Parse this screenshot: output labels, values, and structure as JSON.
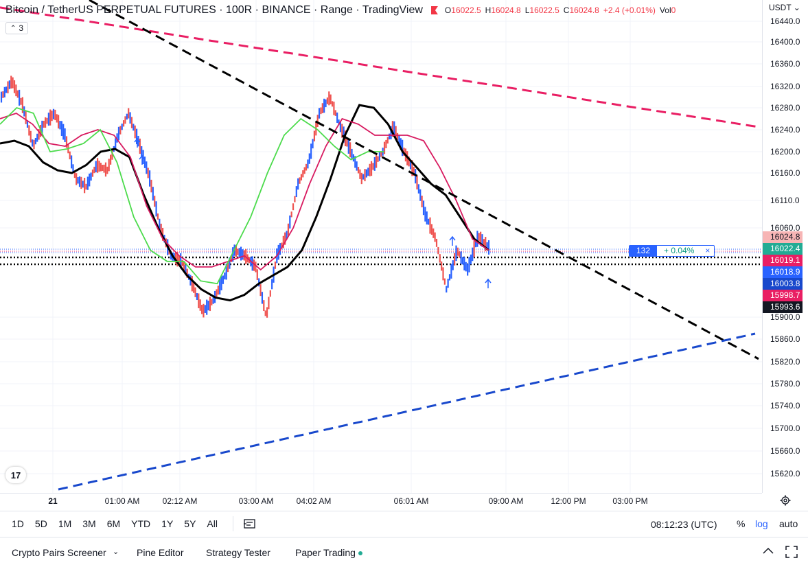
{
  "header": {
    "symbol": "Bitcoin / TetherUS PERPETUAL FUTURES · 100R · BINANCE · Range · TradingView",
    "ohlc": [
      {
        "k": "O",
        "v": "16022.5"
      },
      {
        "k": "H",
        "v": "16024.8"
      },
      {
        "k": "L",
        "v": "16022.5"
      },
      {
        "k": "C",
        "v": "16024.8"
      }
    ],
    "change": "+2.4 (+0.01%)",
    "vol_label": "Vol",
    "vol_value": "0",
    "indicator_count": "3"
  },
  "currency": "USDT",
  "price_scale": {
    "ticks": [
      "16440.0",
      "16400.0",
      "16360.0",
      "16320.0",
      "16280.0",
      "16240.0",
      "16200.0",
      "16160.0",
      "16110.0",
      "16060.0",
      "15900.0",
      "15860.0",
      "15820.0",
      "15780.0",
      "15740.0",
      "15700.0",
      "15660.0",
      "15620.0"
    ],
    "min": 15600,
    "max": 16450
  },
  "price_labels": [
    {
      "value": "16024.8",
      "color": "#f7b5b5",
      "text_color": "#131722"
    },
    {
      "value": "16022.4",
      "color": "#22ab94",
      "text_color": "#ffffff"
    },
    {
      "value": "16019.1",
      "color": "#e91e63",
      "text_color": "#ffffff"
    },
    {
      "value": "16018.9",
      "color": "#2962ff",
      "text_color": "#ffffff"
    },
    {
      "value": "16003.8",
      "color": "#1848cc",
      "text_color": "#ffffff"
    },
    {
      "value": "15998.7",
      "color": "#e91e63",
      "text_color": "#ffffff"
    },
    {
      "value": "15993.6",
      "color": "#131722",
      "text_color": "#ffffff"
    }
  ],
  "position_tag": {
    "qty": "132",
    "pct": "+ 0.04%",
    "close": "×"
  },
  "time_axis": {
    "labels": [
      "21",
      "01:00 AM",
      "02:12 AM",
      "03:00 AM",
      "04:02 AM",
      "06:01 AM",
      "09:00 AM",
      "12:00 PM",
      "03:00 PM"
    ]
  },
  "range_buttons": [
    "1D",
    "5D",
    "1M",
    "3M",
    "6M",
    "YTD",
    "1Y",
    "5Y",
    "All"
  ],
  "clock": "08:12:23 (UTC)",
  "scale_options": {
    "percent": "%",
    "log": "log",
    "auto": "auto"
  },
  "bottom_panel": {
    "tabs": [
      "Crypto Pairs Screener",
      "Pine Editor",
      "Strategy Tester",
      "Paper Trading"
    ]
  },
  "logo": "17",
  "colors": {
    "up": "#26a69a",
    "down": "#ef5350",
    "candle_blue": "#2962ff",
    "ma_black": "#000000",
    "ma_magenta": "#d81b60",
    "ma_green": "#4cdb4c",
    "trend_pink": "#e91e63",
    "trend_blue": "#1848cc",
    "trend_black": "#000000"
  },
  "chart_data": {
    "type": "line",
    "series": [
      {
        "values": [
          16300,
          16330,
          16285,
          16210,
          16250,
          16270,
          16230,
          16150,
          16135,
          16175,
          16165,
          16230,
          16270,
          16215,
          16150,
          16060,
          16010,
          16000,
          15960,
          15910,
          15930,
          15970,
          16020,
          16010,
          15990,
          15900,
          16010,
          16050,
          16140,
          16180,
          16270,
          16300,
          16245,
          16200,
          16150,
          16170,
          16200,
          16245,
          16200,
          16160,
          16085,
          16040,
          15950,
          16020,
          15985,
          16045,
          16025
        ]
      },
      {
        "values": [
          16215,
          16220,
          16210,
          16180,
          16165,
          16160,
          16175,
          16200,
          16205,
          16190,
          16120,
          16060,
          16010,
          15975,
          15950,
          15935,
          15930,
          15940,
          15960,
          15975,
          15990,
          16020,
          16080,
          16150,
          16230,
          16285,
          16280,
          16250,
          16200,
          16170,
          16140,
          16120,
          16080,
          16040,
          16020
        ]
      },
      {
        "values": [
          16260,
          16270,
          16250,
          16215,
          16210,
          16230,
          16240,
          16230,
          16190,
          16100,
          16040,
          16010,
          15990,
          15990,
          16000,
          16010,
          15985,
          16010,
          16060,
          16140,
          16210,
          16260,
          16250,
          16230,
          16230,
          16230,
          16220,
          16170,
          16110,
          16040,
          16020
        ]
      },
      {
        "values": [
          16250,
          16280,
          16270,
          16200,
          16205,
          16215,
          16240,
          16180,
          16080,
          16020,
          16000,
          16000,
          15965,
          15960,
          16020,
          16080,
          16160,
          16230,
          16260,
          16240,
          16210,
          16185,
          16200,
          16200
        ]
      }
    ],
    "trendlines": [
      {
        "name": "",
        "points": [
          [
            "00:00",
            16470
          ],
          [
            "end",
            16245
          ]
        ],
        "style": "dashed",
        "color": "pink"
      },
      {
        "name": "",
        "points": [
          [
            "00:00",
            16520
          ],
          [
            "end",
            15825
          ]
        ],
        "style": "dashed",
        "color": "black"
      },
      {
        "name": "",
        "points": [
          [
            "00:10",
            15620
          ],
          [
            "end",
            15870
          ]
        ],
        "style": "dashed",
        "color": "blue"
      }
    ],
    "ylim": [
      15600,
      16450
    ],
    "xlabel": "",
    "ylabel": ""
  }
}
